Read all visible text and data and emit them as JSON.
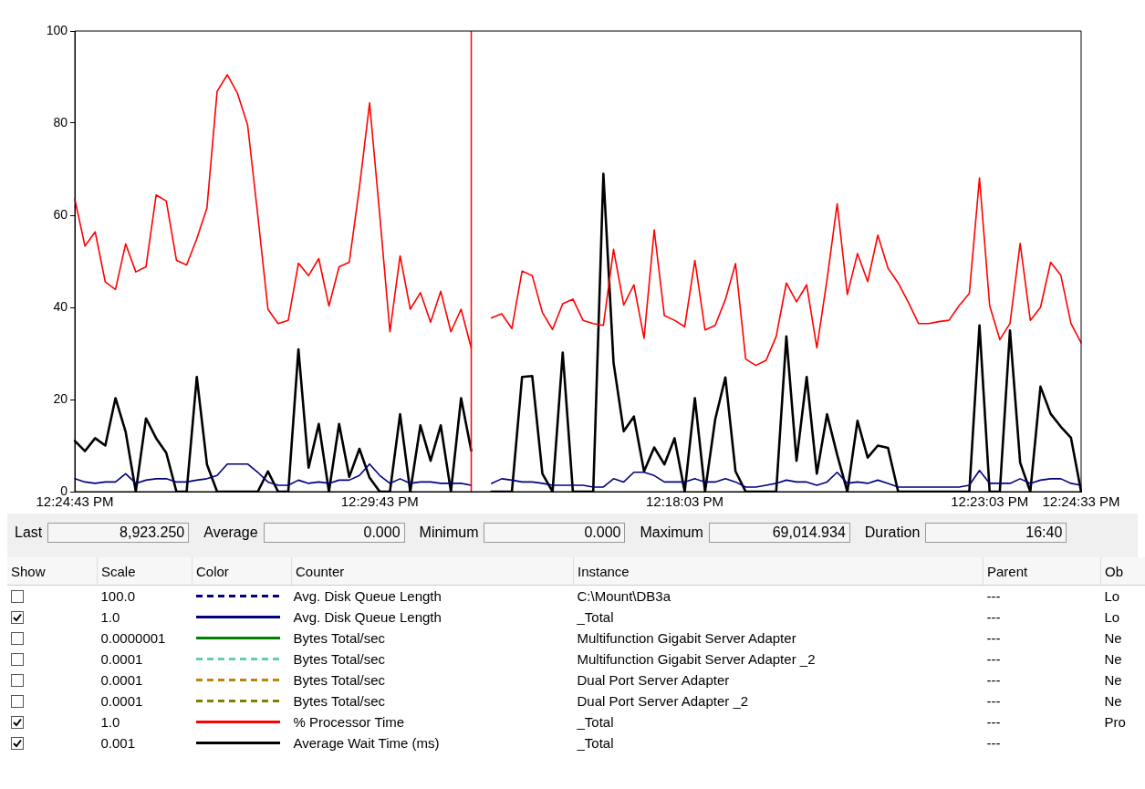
{
  "chart_data": {
    "type": "line",
    "categories": [
      "12:24:43 PM",
      null,
      null,
      null,
      null,
      null,
      null,
      null,
      null,
      null,
      null,
      null,
      null,
      null,
      null,
      null,
      null,
      null,
      null,
      null,
      null,
      null,
      null,
      null,
      null,
      null,
      null,
      null,
      null,
      null,
      "12:29:43 PM",
      null,
      null,
      null,
      null,
      null,
      null,
      null,
      null,
      null,
      null,
      null,
      null,
      null,
      null,
      null,
      null,
      null,
      null,
      null,
      null,
      null,
      null,
      null,
      null,
      null,
      null,
      null,
      null,
      null,
      "12:18:03 PM",
      null,
      null,
      null,
      null,
      null,
      null,
      null,
      null,
      null,
      null,
      null,
      null,
      null,
      null,
      null,
      null,
      null,
      null,
      null,
      null,
      null,
      null,
      null,
      null,
      null,
      null,
      null,
      null,
      null,
      "12:23:03 PM",
      null,
      null,
      null,
      null,
      null,
      null,
      null,
      null,
      "12:24:33 PM"
    ],
    "ylim": [
      0,
      100
    ],
    "yticks": [
      0,
      20,
      40,
      60,
      80,
      100
    ],
    "legend": "bottom",
    "series": [
      {
        "name": "Avg. Disk Queue Length",
        "color": "#000080",
        "line_style": "dashed",
        "values": [
          null,
          null,
          null,
          null,
          null,
          null,
          null,
          null,
          null,
          null,
          null,
          null,
          null,
          null,
          null,
          null,
          null,
          null,
          null,
          null,
          null,
          null,
          null,
          null,
          null,
          null,
          null,
          null,
          null,
          null,
          null,
          null,
          null,
          null,
          null,
          null,
          null,
          null,
          null,
          null,
          null,
          null,
          null,
          null,
          null,
          null,
          null,
          null,
          null,
          null,
          null,
          null,
          null,
          null,
          null,
          null,
          null,
          null,
          null,
          null,
          null,
          null,
          null,
          null,
          null,
          null,
          null,
          null,
          null,
          null,
          null,
          null,
          null,
          null,
          null,
          null,
          null,
          null,
          null,
          null,
          null,
          null,
          null,
          null,
          null,
          null,
          null,
          null,
          null,
          null,
          null,
          null,
          null,
          null,
          null,
          null,
          null,
          null,
          null,
          null
        ]
      },
      {
        "name": "Avg. Disk Queue Length",
        "color": "#000080",
        "line_style": "solid",
        "values": [
          2.8,
          2.1,
          1.8,
          2.1,
          2.1,
          3.9,
          1.8,
          2.5,
          2.8,
          2.8,
          2.1,
          2.1,
          2.5,
          2.8,
          3.5,
          6.0,
          6.0,
          6.0,
          4.2,
          2.1,
          1.4,
          1.4,
          2.5,
          1.8,
          2.1,
          1.8,
          2.5,
          2.5,
          3.5,
          6.0,
          3.5,
          1.8,
          2.8,
          1.8,
          2.1,
          2.1,
          1.8,
          1.8,
          1.8,
          1.4,
          null,
          1.8,
          2.8,
          2.5,
          2.1,
          2.1,
          1.8,
          1.4,
          1.4,
          1.4,
          1.4,
          1.0,
          1.0,
          2.8,
          2.1,
          4.2,
          4.2,
          3.5,
          2.1,
          2.1,
          2.1,
          2.8,
          2.1,
          2.1,
          2.8,
          2.1,
          1.0,
          1.0,
          1.4,
          1.8,
          2.5,
          2.1,
          2.1,
          1.4,
          2.1,
          4.2,
          1.8,
          2.1,
          1.8,
          2.5,
          1.8,
          1.0,
          1.0,
          1.0,
          1.0,
          1.0,
          1.0,
          1.0,
          1.4,
          4.6,
          1.8,
          1.8,
          1.8,
          2.8,
          1.8,
          2.5,
          2.8,
          2.8,
          1.8,
          1.4
        ]
      },
      {
        "name": "Bytes Total/sec",
        "color": "#008000",
        "line_style": "solid",
        "values": [
          null,
          null,
          null,
          null,
          null,
          null,
          null,
          null,
          null,
          null,
          null,
          null,
          null,
          null,
          null,
          null,
          null,
          null,
          null,
          null,
          null,
          null,
          null,
          null,
          null,
          null,
          null,
          null,
          null,
          null,
          null,
          null,
          null,
          null,
          null,
          null,
          null,
          null,
          null,
          null,
          null,
          null,
          null,
          null,
          null,
          null,
          null,
          null,
          null,
          null,
          null,
          null,
          null,
          null,
          null,
          null,
          null,
          null,
          null,
          null,
          null,
          null,
          null,
          null,
          null,
          null,
          null,
          null,
          null,
          null,
          null,
          null,
          null,
          null,
          null,
          null,
          null,
          null,
          null,
          null,
          null,
          null,
          null,
          null,
          null,
          null,
          null,
          null,
          null,
          null,
          null,
          null,
          null,
          null,
          null,
          null,
          null,
          null,
          null,
          null
        ]
      },
      {
        "name": "Bytes Total/sec",
        "color": "#66cdaa",
        "line_style": "dashed",
        "values": [
          null,
          null,
          null,
          null,
          null,
          null,
          null,
          null,
          null,
          null,
          null,
          null,
          null,
          null,
          null,
          null,
          null,
          null,
          null,
          null,
          null,
          null,
          null,
          null,
          null,
          null,
          null,
          null,
          null,
          null,
          null,
          null,
          null,
          null,
          null,
          null,
          null,
          null,
          null,
          null,
          null,
          null,
          null,
          null,
          null,
          null,
          null,
          null,
          null,
          null,
          null,
          null,
          null,
          null,
          null,
          null,
          null,
          null,
          null,
          null,
          null,
          null,
          null,
          null,
          null,
          null,
          null,
          null,
          null,
          null,
          null,
          null,
          null,
          null,
          null,
          null,
          null,
          null,
          null,
          null,
          null,
          null,
          null,
          null,
          null,
          null,
          null,
          null,
          null,
          null,
          null,
          null,
          null,
          null,
          null,
          null,
          null,
          null,
          null,
          null
        ]
      },
      {
        "name": "Bytes Total/sec",
        "color": "#b8860b",
        "line_style": "dashed",
        "values": [
          null,
          null,
          null,
          null,
          null,
          null,
          null,
          null,
          null,
          null,
          null,
          null,
          null,
          null,
          null,
          null,
          null,
          null,
          null,
          null,
          null,
          null,
          null,
          null,
          null,
          null,
          null,
          null,
          null,
          null,
          null,
          null,
          null,
          null,
          null,
          null,
          null,
          null,
          null,
          null,
          null,
          null,
          null,
          null,
          null,
          null,
          null,
          null,
          null,
          null,
          null,
          null,
          null,
          null,
          null,
          null,
          null,
          null,
          null,
          null,
          null,
          null,
          null,
          null,
          null,
          null,
          null,
          null,
          null,
          null,
          null,
          null,
          null,
          null,
          null,
          null,
          null,
          null,
          null,
          null,
          null,
          null,
          null,
          null,
          null,
          null,
          null,
          null,
          null,
          null,
          null,
          null,
          null,
          null,
          null,
          null,
          null,
          null,
          null,
          null
        ]
      },
      {
        "name": "Bytes Total/sec",
        "color": "#808000",
        "line_style": "dashed",
        "values": [
          null,
          null,
          null,
          null,
          null,
          null,
          null,
          null,
          null,
          null,
          null,
          null,
          null,
          null,
          null,
          null,
          null,
          null,
          null,
          null,
          null,
          null,
          null,
          null,
          null,
          null,
          null,
          null,
          null,
          null,
          null,
          null,
          null,
          null,
          null,
          null,
          null,
          null,
          null,
          null,
          null,
          null,
          null,
          null,
          null,
          null,
          null,
          null,
          null,
          null,
          null,
          null,
          null,
          null,
          null,
          null,
          null,
          null,
          null,
          null,
          null,
          null,
          null,
          null,
          null,
          null,
          null,
          null,
          null,
          null,
          null,
          null,
          null,
          null,
          null,
          null,
          null,
          null,
          null,
          null,
          null,
          null,
          null,
          null,
          null,
          null,
          null,
          null,
          null,
          null,
          null,
          null,
          null,
          null,
          null,
          null,
          null,
          null,
          null,
          null
        ]
      },
      {
        "name": "% Processor Time",
        "color": "#ff0000",
        "line_style": "solid",
        "values": [
          63.5,
          53.3,
          56.4,
          45.5,
          43.9,
          53.8,
          47.7,
          48.8,
          64.4,
          63.1,
          50.2,
          49.2,
          54.9,
          61.6,
          86.9,
          90.5,
          86.5,
          79.6,
          60,
          39.6,
          36.5,
          37.2,
          49.6,
          46.9,
          50.6,
          40.3,
          48.8,
          49.8,
          66,
          84.4,
          60,
          34.7,
          51.2,
          39.6,
          43.2,
          36.8,
          43.5,
          34.7,
          39.6,
          31.2,
          null,
          37.7,
          38.6,
          35.4,
          47.9,
          46.9,
          38.9,
          35.2,
          40.8,
          41.8,
          37.2,
          36.5,
          36.1,
          52.6,
          40.5,
          44.9,
          33.3,
          56.8,
          38.2,
          37.2,
          35.8,
          50.2,
          35.1,
          36.1,
          41.7,
          49.5,
          28.8,
          27.4,
          28.5,
          33.7,
          45.3,
          41.2,
          44.9,
          31.2,
          46,
          62.5,
          42.8,
          51.7,
          45.6,
          55.7,
          48.5,
          45.3,
          41.1,
          36.5,
          36.5,
          36.9,
          37.2,
          40.4,
          43,
          68.1,
          40.4,
          33,
          36.5,
          53.9,
          37.2,
          40,
          49.8,
          47,
          36.5,
          32.3
        ]
      },
      {
        "name": "Average Wait Time (ms)",
        "color": "#000000",
        "line_style": "solid",
        "values": [
          11.0,
          8.8,
          11.6,
          10,
          20.3,
          13,
          0,
          15.9,
          11.6,
          8.4,
          0,
          0,
          24.9,
          5.9,
          0,
          0,
          0,
          0,
          0,
          4.4,
          0,
          0,
          30.9,
          5.2,
          14.7,
          0,
          14.7,
          3.2,
          9.3,
          3,
          0,
          0,
          16.8,
          0,
          14.4,
          6.7,
          14.4,
          0,
          20.3,
          8.9,
          null,
          0,
          0,
          0,
          24.9,
          25.1,
          3.9,
          0,
          30.2,
          0,
          0,
          0,
          69,
          28,
          13.1,
          16.3,
          4.4,
          9.6,
          5.9,
          11.6,
          0,
          20.3,
          0,
          15.7,
          24.8,
          4.4,
          0,
          0,
          0,
          0,
          33.7,
          6.7,
          24.9,
          3.9,
          16.8,
          8,
          0,
          15.4,
          7.4,
          10,
          9.5,
          0,
          0,
          0,
          0,
          0,
          0,
          0,
          0,
          36.1,
          0,
          0,
          35,
          6.3,
          0,
          22.8,
          16.9,
          14.1,
          11.7,
          0
        ]
      }
    ],
    "annotations": [
      "Last",
      "8,923.250",
      "Average",
      "0.000",
      "Minimum",
      "0.000",
      "Maximum",
      "69,014.934",
      "Duration",
      "16:40",
      "Show",
      "Scale",
      "Color",
      "Counter",
      "Instance",
      "Parent",
      "Ob",
      "100.0",
      "C:\\Mount\\DB3a",
      "---",
      "Lo",
      "1.0",
      "_Total",
      "---",
      "Lo",
      "0.0000001",
      "Multifunction Gigabit Server Adapter",
      "---",
      "Ne",
      "0.0001",
      "Multifunction Gigabit Server Adapter _2",
      "---",
      "Ne",
      "0.0001",
      "Dual Port Server Adapter",
      "---",
      "Ne",
      "0.0001",
      "Dual Port Server Adapter _2",
      "---",
      "Ne",
      "1.0",
      "_Total",
      "---",
      "Pro",
      "0.001",
      "_Total",
      "---"
    ]
  }
}
